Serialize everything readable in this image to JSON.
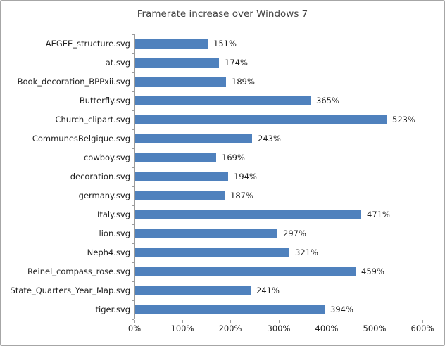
{
  "window": {
    "background": "#FFFFFF",
    "frame_border_color": "#A6A6A6"
  },
  "chart_data": {
    "type": "bar",
    "orientation": "horizontal",
    "title": "Framerate increase over Windows 7",
    "categories": [
      "AEGEE_structure.svg",
      "at.svg",
      "Book_decoration_BPPxii.svg",
      "Butterfly.svg",
      "Church_clipart.svg",
      "CommunesBelgique.svg",
      "cowboy.svg",
      "decoration.svg",
      "germany.svg",
      "Italy.svg",
      "lion.svg",
      "Neph4.svg",
      "Reinel_compass_rose.svg",
      "State_Quarters_Year_Map.svg",
      "tiger.svg"
    ],
    "values": [
      151,
      174,
      189,
      365,
      523,
      243,
      169,
      194,
      187,
      471,
      297,
      321,
      459,
      241,
      394
    ],
    "value_labels": [
      "151%",
      "174%",
      "189%",
      "365%",
      "523%",
      "243%",
      "169%",
      "194%",
      "187%",
      "471%",
      "297%",
      "321%",
      "459%",
      "241%",
      "394%"
    ],
    "xlabel": "",
    "ylabel": "",
    "xlim": [
      0,
      600
    ],
    "x_tick_step": 100,
    "x_tick_labels": [
      "0%",
      "100%",
      "200%",
      "300%",
      "400%",
      "500%",
      "600%"
    ],
    "grid": false,
    "legend": "none",
    "bar_color": "#4F81BD",
    "axis_color": "#9B9B9B",
    "title_color": "#3F3F3F",
    "text_color": "#1F1F1F"
  }
}
